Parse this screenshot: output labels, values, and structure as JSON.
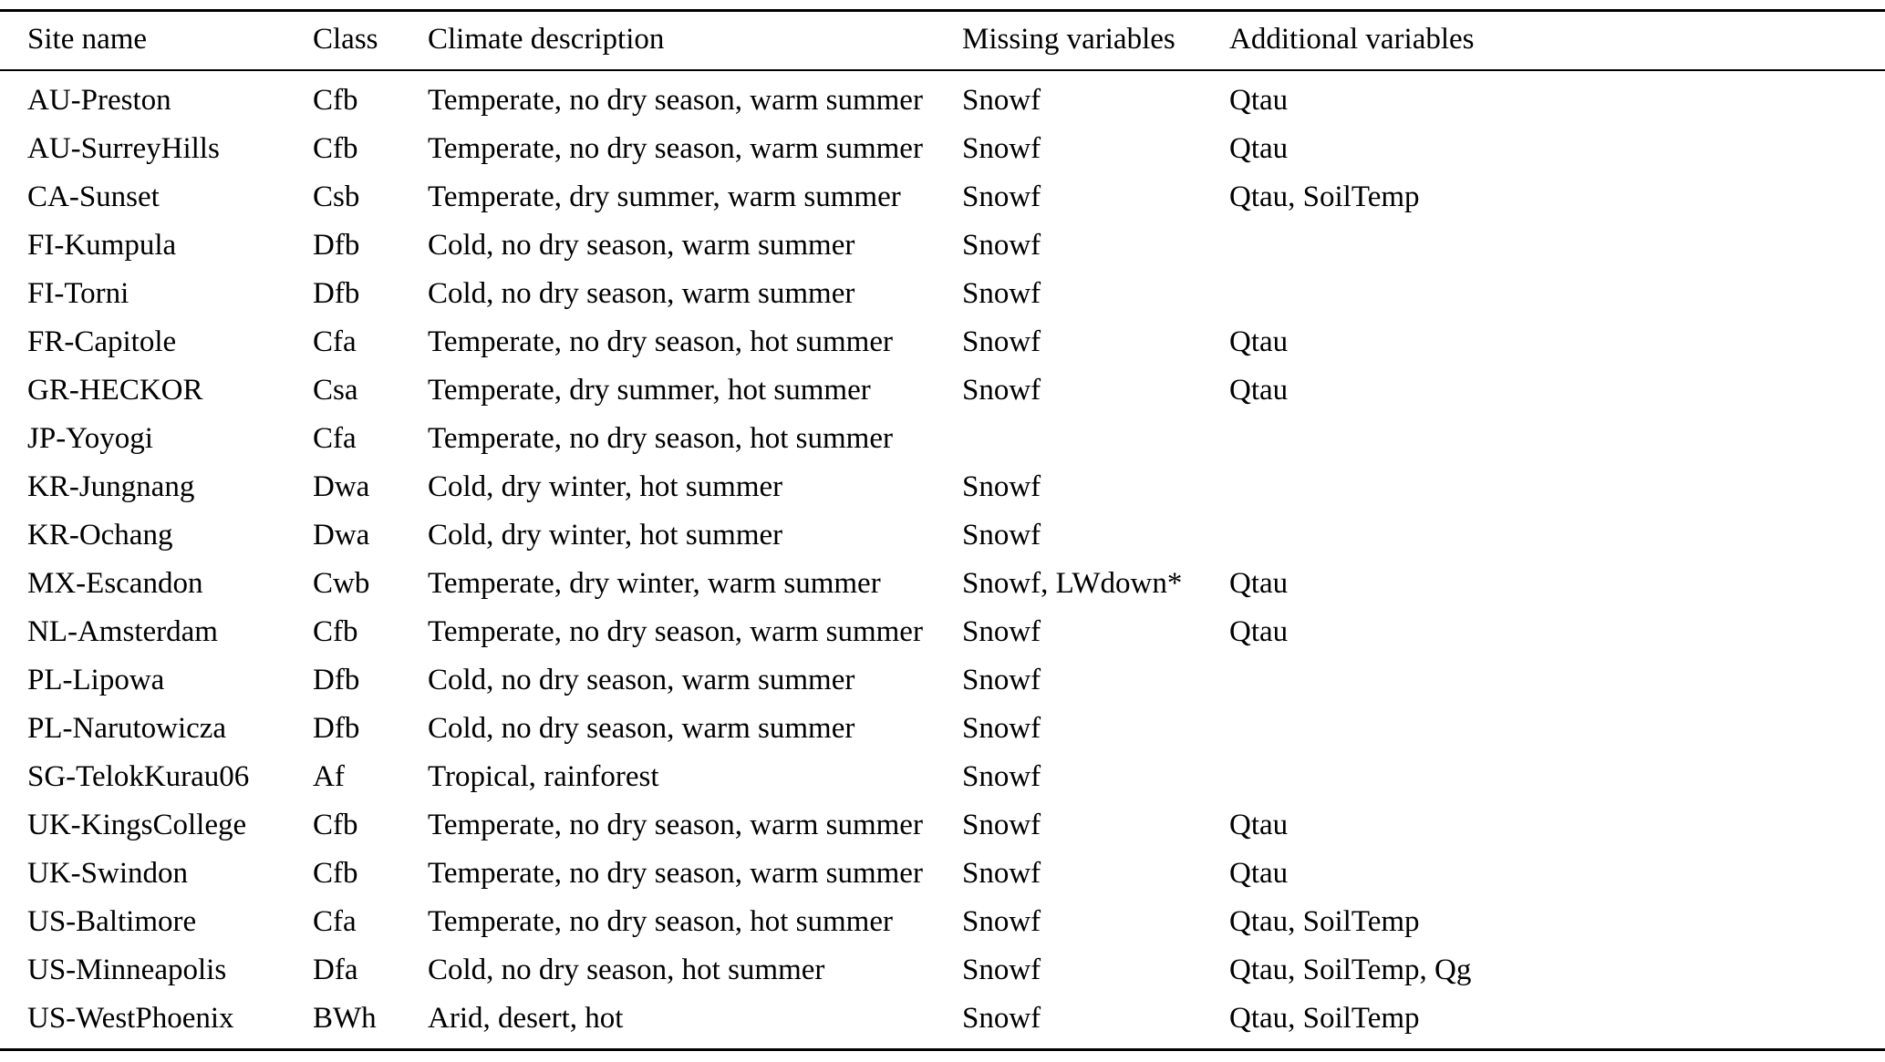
{
  "table": {
    "columns": [
      "Site name",
      "Class",
      "Climate description",
      "Missing variables",
      "Additional variables"
    ],
    "rows": [
      [
        "AU-Preston",
        "Cfb",
        "Temperate, no dry season, warm summer",
        "Snowf",
        "Qtau"
      ],
      [
        "AU-SurreyHills",
        "Cfb",
        "Temperate, no dry season, warm summer",
        "Snowf",
        "Qtau"
      ],
      [
        "CA-Sunset",
        "Csb",
        "Temperate, dry summer, warm summer",
        "Snowf",
        "Qtau, SoilTemp"
      ],
      [
        "FI-Kumpula",
        "Dfb",
        "Cold, no dry season, warm summer",
        "Snowf",
        ""
      ],
      [
        "FI-Torni",
        "Dfb",
        "Cold, no dry season, warm summer",
        "Snowf",
        ""
      ],
      [
        "FR-Capitole",
        "Cfa",
        "Temperate, no dry season, hot summer",
        "Snowf",
        "Qtau"
      ],
      [
        "GR-HECKOR",
        "Csa",
        "Temperate, dry summer, hot summer",
        "Snowf",
        "Qtau"
      ],
      [
        "JP-Yoyogi",
        "Cfa",
        "Temperate, no dry season, hot summer",
        "",
        ""
      ],
      [
        "KR-Jungnang",
        "Dwa",
        "Cold, dry winter, hot summer",
        "Snowf",
        ""
      ],
      [
        "KR-Ochang",
        "Dwa",
        "Cold, dry winter, hot summer",
        "Snowf",
        ""
      ],
      [
        "MX-Escandon",
        "Cwb",
        "Temperate, dry winter, warm summer",
        "Snowf, LWdown*",
        "Qtau"
      ],
      [
        "NL-Amsterdam",
        "Cfb",
        "Temperate, no dry season, warm summer",
        "Snowf",
        "Qtau"
      ],
      [
        "PL-Lipowa",
        "Dfb",
        "Cold, no dry season, warm summer",
        "Snowf",
        ""
      ],
      [
        "PL-Narutowicza",
        "Dfb",
        "Cold, no dry season, warm summer",
        "Snowf",
        ""
      ],
      [
        "SG-TelokKurau06",
        "Af",
        "Tropical, rainforest",
        "Snowf",
        ""
      ],
      [
        "UK-KingsCollege",
        "Cfb",
        "Temperate, no dry season, warm summer",
        "Snowf",
        "Qtau"
      ],
      [
        "UK-Swindon",
        "Cfb",
        "Temperate, no dry season, warm summer",
        "Snowf",
        "Qtau"
      ],
      [
        "US-Baltimore",
        "Cfa",
        "Temperate, no dry season, hot summer",
        "Snowf",
        "Qtau, SoilTemp"
      ],
      [
        "US-Minneapolis",
        "Dfa",
        "Cold, no dry season, hot summer",
        "Snowf",
        "Qtau, SoilTemp, Qg"
      ],
      [
        "US-WestPhoenix",
        "BWh",
        "Arid, desert, hot",
        "Snowf",
        "Qtau, SoilTemp"
      ]
    ]
  }
}
